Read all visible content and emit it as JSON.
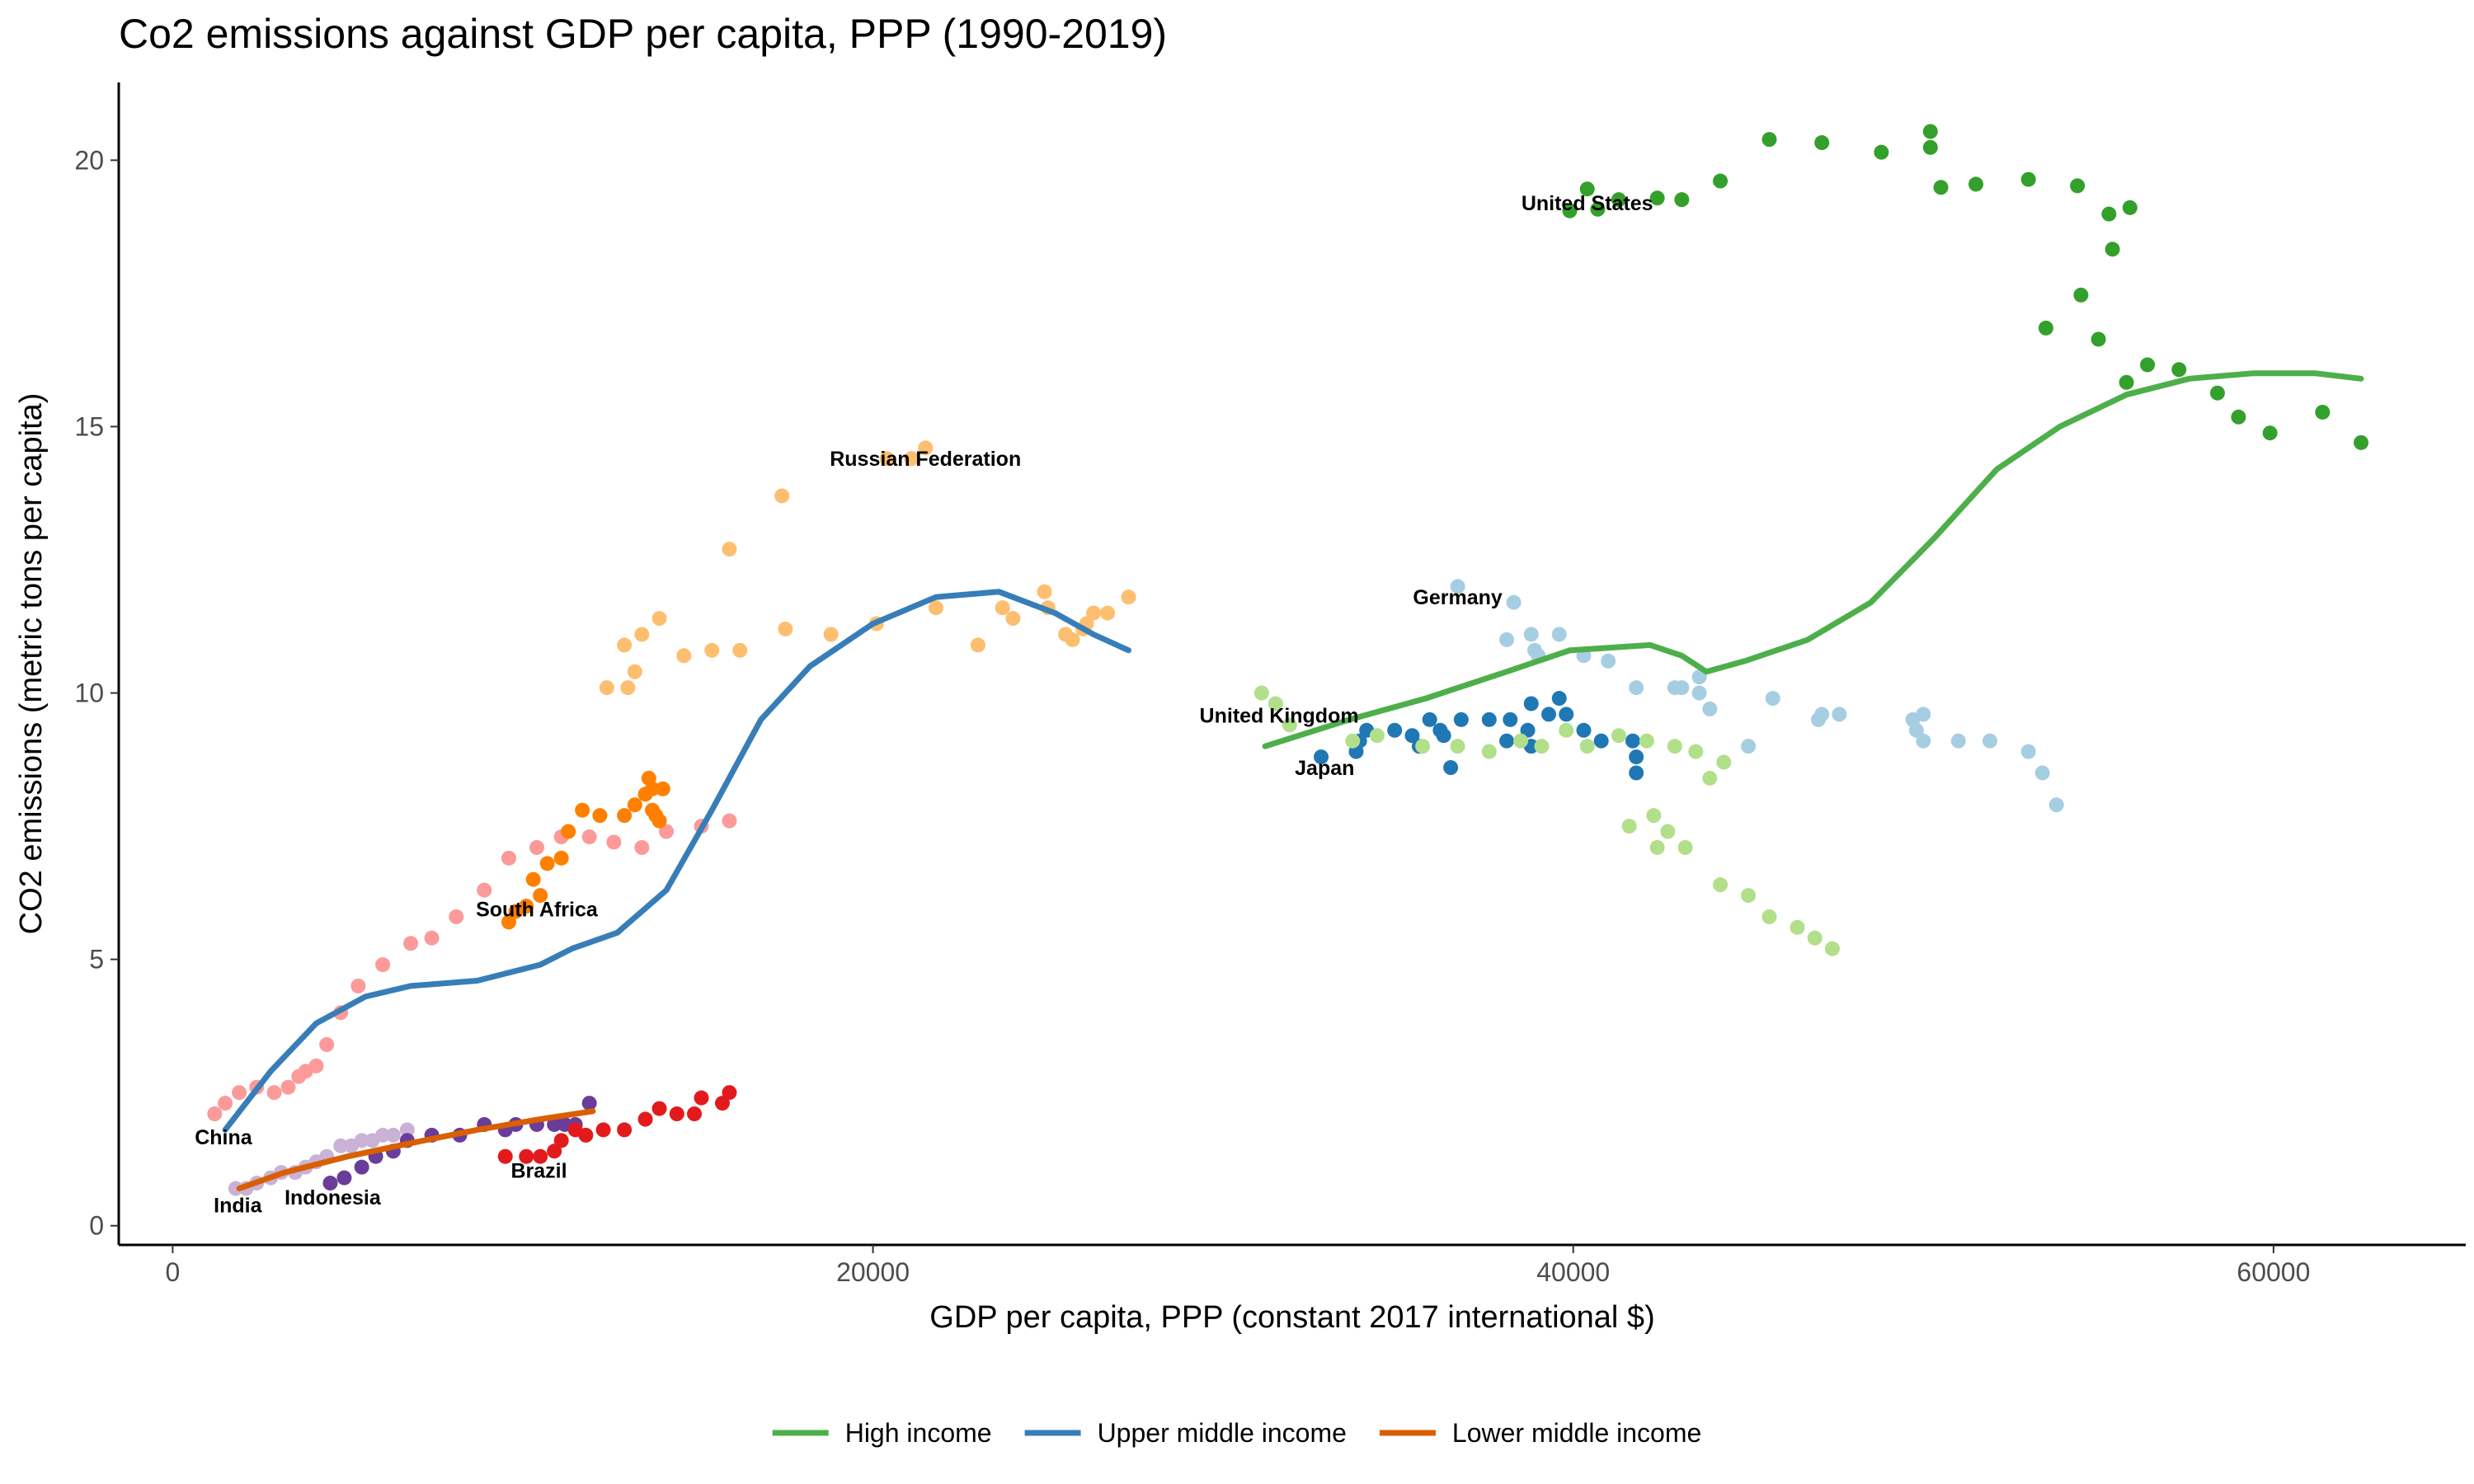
{
  "chart_data": {
    "type": "scatter",
    "title": "Co2 emissions against GDP per capita, PPP (1990-2019)",
    "x_label": "GDP per capita, PPP (constant 2017 international $)",
    "y_label": "CO2 emissions (metric tons per capita)",
    "xlim": [
      -1540,
      65490
    ],
    "ylim": [
      -0.36,
      21.46
    ],
    "xticks": [
      0,
      20000,
      40000,
      60000
    ],
    "yticks": [
      0,
      5,
      10,
      15,
      20
    ],
    "grid": false,
    "legend": "bottom",
    "series": [
      {
        "name": "China",
        "color": "#fb9a99",
        "label_x": 1450,
        "label_y": 1.67,
        "x": [
          1200,
          1500,
          1900,
          2400,
          2900,
          3300,
          3600,
          3800,
          4100,
          4400,
          4800,
          5300,
          6000,
          6800,
          7400,
          8100,
          8900,
          9600,
          10400,
          11100,
          11900,
          12600,
          13400,
          14100,
          15100,
          15900
        ],
        "y": [
          2.1,
          2.3,
          2.5,
          2.6,
          2.5,
          2.6,
          2.8,
          2.9,
          3.0,
          3.4,
          4.0,
          4.5,
          4.9,
          5.3,
          5.4,
          5.8,
          6.3,
          6.9,
          7.1,
          7.3,
          7.3,
          7.2,
          7.1,
          7.4,
          7.5,
          7.6
        ]
      },
      {
        "name": "India",
        "color": "#cab2d6",
        "label_x": 1860,
        "label_y": 0.39,
        "x": [
          1800,
          2100,
          2400,
          2800,
          3100,
          3500,
          3800,
          4100,
          4400,
          4800,
          5100,
          5400,
          5700,
          6000,
          6300,
          6700
        ],
        "y": [
          0.7,
          0.7,
          0.8,
          0.9,
          1.0,
          1.0,
          1.1,
          1.2,
          1.3,
          1.5,
          1.5,
          1.6,
          1.6,
          1.7,
          1.7,
          1.8
        ]
      },
      {
        "name": "Indonesia",
        "color": "#6a3d9a",
        "label_x": 4570,
        "label_y": 0.54,
        "x": [
          4500,
          4900,
          5400,
          5800,
          6300,
          6700,
          7400,
          8200,
          8900,
          9500,
          9800,
          10400,
          10900,
          11200,
          11500,
          11900
        ],
        "y": [
          0.8,
          0.9,
          1.1,
          1.3,
          1.4,
          1.6,
          1.7,
          1.7,
          1.9,
          1.8,
          1.9,
          1.9,
          1.9,
          1.9,
          1.9,
          2.3
        ]
      },
      {
        "name": "Brazil",
        "color": "#e31a1c",
        "label_x": 10460,
        "label_y": 1.04,
        "x": [
          9500,
          10100,
          10500,
          10900,
          11100,
          11500,
          11800,
          12300,
          12900,
          13500,
          13900,
          14400,
          14900,
          15100,
          15700,
          15900
        ],
        "y": [
          1.3,
          1.3,
          1.3,
          1.4,
          1.6,
          1.8,
          1.7,
          1.8,
          1.8,
          2.0,
          2.2,
          2.1,
          2.1,
          2.4,
          2.3,
          2.5
        ]
      },
      {
        "name": "South Africa",
        "color": "#ff7f00",
        "label_x": 10400,
        "label_y": 5.95,
        "x": [
          9600,
          9800,
          10100,
          10300,
          10500,
          10700,
          11100,
          11300,
          11700,
          12200,
          12900,
          13200,
          13500,
          13600,
          13700,
          14000,
          13800,
          13900,
          13700
        ],
        "y": [
          5.7,
          5.9,
          6.0,
          6.5,
          6.2,
          6.8,
          6.9,
          7.4,
          7.8,
          7.7,
          7.7,
          7.9,
          8.1,
          8.4,
          8.2,
          8.2,
          7.7,
          7.6,
          7.8
        ]
      },
      {
        "name": "Russian Federation",
        "color": "#fdbf6f",
        "label_x": 21500,
        "label_y": 14.4,
        "x": [
          12400,
          13000,
          13200,
          12900,
          13400,
          13900,
          14600,
          15400,
          16200,
          15900,
          17400,
          17500,
          18800,
          20100,
          20400,
          21500,
          21800,
          23000,
          23700,
          24000,
          24900,
          25000,
          25500,
          25700,
          26000,
          26100,
          26300,
          26700,
          27300,
          21100
        ],
        "y": [
          10.1,
          10.1,
          10.4,
          10.9,
          11.1,
          11.4,
          10.7,
          10.8,
          10.8,
          12.7,
          13.7,
          11.2,
          11.1,
          11.3,
          14.4,
          14.6,
          11.6,
          10.9,
          11.6,
          11.4,
          11.9,
          11.6,
          11.1,
          11.0,
          11.2,
          11.3,
          11.5,
          11.5,
          11.8,
          14.4
        ]
      },
      {
        "name": "Germany",
        "color": "#a6cee3",
        "label_x": 36700,
        "label_y": 11.8,
        "x": [
          36700,
          38300,
          38100,
          38800,
          38900,
          39600,
          39000,
          40300,
          41000,
          41800,
          42900,
          43100,
          43600,
          43600,
          43900,
          45700,
          45000,
          47000,
          47100,
          47600,
          49800,
          50000,
          49700,
          50000,
          51000,
          51900,
          53000,
          53400,
          53800
        ],
        "y": [
          12.0,
          11.7,
          11.0,
          11.1,
          10.8,
          11.1,
          10.7,
          10.7,
          10.6,
          10.1,
          10.1,
          10.1,
          10.3,
          10.0,
          9.7,
          9.9,
          9.0,
          9.5,
          9.6,
          9.6,
          9.3,
          9.6,
          9.5,
          9.1,
          9.1,
          9.1,
          8.9,
          8.5,
          7.9
        ]
      },
      {
        "name": "Japan",
        "color": "#1f78b4",
        "label_x": 32900,
        "label_y": 8.6,
        "x": [
          32800,
          33800,
          33900,
          34100,
          34900,
          35400,
          35600,
          35900,
          36200,
          36300,
          36500,
          36800,
          37600,
          38100,
          38200,
          38800,
          38700,
          38800,
          39300,
          39600,
          39800,
          40300,
          40800,
          41700,
          41800,
          41800
        ],
        "y": [
          8.8,
          8.9,
          9.1,
          9.3,
          9.3,
          9.2,
          9.0,
          9.5,
          9.3,
          9.2,
          8.6,
          9.5,
          9.5,
          9.1,
          9.5,
          9.8,
          9.3,
          9.0,
          9.6,
          9.9,
          9.6,
          9.3,
          9.1,
          9.1,
          8.8,
          8.5
        ]
      },
      {
        "name": "United Kingdom",
        "color": "#b2df8a",
        "label_x": 31600,
        "label_y": 9.58,
        "x": [
          31100,
          31500,
          31900,
          33700,
          34400,
          35700,
          36700,
          37600,
          38500,
          39100,
          39800,
          40400,
          41300,
          42100,
          42900,
          43500,
          43900,
          44300,
          41600,
          42300,
          42400,
          42700,
          43200,
          44200,
          45000,
          45600,
          46400,
          46900,
          47400
        ],
        "y": [
          10.0,
          9.8,
          9.4,
          9.1,
          9.2,
          9.0,
          9.0,
          8.9,
          9.1,
          9.0,
          9.3,
          9.0,
          9.2,
          9.1,
          9.0,
          8.9,
          8.4,
          8.7,
          7.5,
          7.7,
          7.1,
          7.4,
          7.1,
          6.4,
          6.2,
          5.8,
          5.6,
          5.4,
          5.2
        ]
      },
      {
        "name": "United States",
        "color": "#33a02c",
        "label_x": 40400,
        "label_y": 19.2,
        "x": [
          39900,
          40400,
          40700,
          41300,
          42400,
          43100,
          44200,
          45600,
          47100,
          48800,
          50200,
          50200,
          50500,
          51500,
          53000,
          54400,
          55300,
          55900,
          55400,
          54500,
          53500,
          55000,
          55800,
          56400,
          57300,
          58400,
          59000,
          59900,
          61400,
          62500
        ],
        "y": [
          19.05,
          19.46,
          19.08,
          19.26,
          19.29,
          19.26,
          19.61,
          20.39,
          20.33,
          20.15,
          20.54,
          20.24,
          19.49,
          19.55,
          19.64,
          19.52,
          18.99,
          19.11,
          18.33,
          17.47,
          16.85,
          16.64,
          15.83,
          16.16,
          16.07,
          15.63,
          15.18,
          14.88,
          15.27,
          14.7
        ]
      }
    ],
    "trend_lines": [
      {
        "name": "High income",
        "color": "#4daf4a",
        "x": [
          31200,
          33600,
          35800,
          38100,
          39900,
          42200,
          43100,
          43800,
          44900,
          46700,
          48500,
          50300,
          52100,
          53900,
          55800,
          57600,
          59400,
          61200,
          62500
        ],
        "y": [
          9.0,
          9.5,
          9.9,
          10.4,
          10.8,
          10.9,
          10.7,
          10.4,
          10.6,
          11.0,
          11.7,
          12.9,
          14.2,
          15.0,
          15.6,
          15.9,
          16.0,
          16.0,
          15.9
        ]
      },
      {
        "name": "Upper middle income",
        "color": "#377eb8",
        "x": [
          1500,
          2800,
          4100,
          5500,
          6800,
          8700,
          10500,
          11400,
          12700,
          14100,
          15400,
          16800,
          18200,
          20000,
          21800,
          23600,
          25200,
          26300,
          27300
        ],
        "y": [
          1.8,
          2.9,
          3.8,
          4.3,
          4.5,
          4.6,
          4.9,
          5.2,
          5.5,
          6.3,
          7.8,
          9.5,
          10.5,
          11.3,
          11.8,
          11.9,
          11.5,
          11.1,
          10.8
        ]
      },
      {
        "name": "Lower middle income",
        "color": "#d95f02",
        "x": [
          1900,
          3200,
          5000,
          6800,
          8700,
          10500,
          12000
        ],
        "y": [
          0.7,
          1.0,
          1.3,
          1.55,
          1.8,
          2.0,
          2.15
        ]
      }
    ]
  }
}
